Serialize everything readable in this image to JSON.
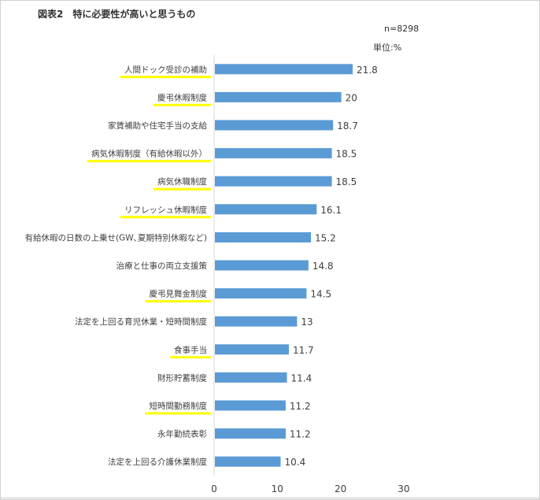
{
  "title": "図表2　特に必要性が高いと思うもの",
  "n_label": "n=8298",
  "unit_label": "単位:%",
  "colors": {
    "bar": "#5b9bd5",
    "highlight": "#ffff00",
    "text": "#404040",
    "axis": "#d9d9d9"
  },
  "chart_data": {
    "type": "bar",
    "orientation": "horizontal",
    "title": "図表2　特に必要性が高いと思うもの",
    "xlabel": "",
    "ylabel": "",
    "xlim": [
      0,
      30
    ],
    "xticks": [
      0,
      10,
      20,
      30
    ],
    "grid": false,
    "categories": [
      "人間ドック受診の補助",
      "慶弔休暇制度",
      "家賃補助や住宅手当の支給",
      "病気休暇制度（有給休暇以外）",
      "病気休職制度",
      "リフレッシュ休暇制度",
      "有給休暇の日数の上乗せ(GW､夏期特別休暇など)",
      "治療と仕事の両立支援策",
      "慶弔見舞金制度",
      "法定を上回る育児休業・短時間制度",
      "食事手当",
      "財形貯蓄制度",
      "短時間勤務制度",
      "永年勤続表彰",
      "法定を上回る介護休業制度"
    ],
    "values": [
      21.8,
      20,
      18.7,
      18.5,
      18.5,
      16.1,
      15.2,
      14.8,
      14.5,
      13,
      11.7,
      11.4,
      11.2,
      11.2,
      10.4
    ],
    "highlighted": [
      true,
      true,
      false,
      true,
      true,
      true,
      false,
      false,
      true,
      false,
      true,
      false,
      true,
      false,
      false
    ]
  }
}
